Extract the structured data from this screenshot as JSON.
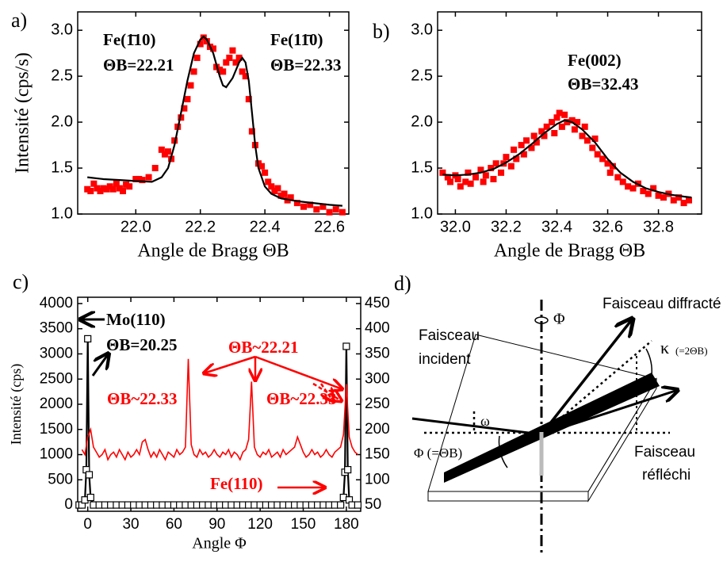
{
  "chart_data": [
    {
      "type": "scatter",
      "panel_label": "a)",
      "xlabel": "Angle de Bragg ΘB",
      "ylabel": "Intensité (cps/s)",
      "xlim": [
        21.82,
        22.66
      ],
      "ylim": [
        1.0,
        3.2
      ],
      "xticks": [
        {
          "value": 22,
          "label": "22.0"
        },
        22.2,
        22.4,
        22.6
      ],
      "yticks": [
        {
          "value": 1,
          "label": "1.0"
        },
        1.5,
        {
          "value": 2,
          "label": "2.0"
        },
        2.5,
        {
          "value": 3,
          "label": "3.0"
        }
      ],
      "series": [
        {
          "type": "scatter",
          "marker": "square",
          "color": "#ff0000",
          "x": [
            21.85,
            21.86,
            21.87,
            21.88,
            21.89,
            21.9,
            21.91,
            21.92,
            21.93,
            21.94,
            21.95,
            21.96,
            21.97,
            21.98,
            22.0,
            22.01,
            22.02,
            22.04,
            22.06,
            22.08,
            22.09,
            22.1,
            22.11,
            22.12,
            22.13,
            22.14,
            22.15,
            22.16,
            22.17,
            22.18,
            22.19,
            22.2,
            22.21,
            22.22,
            22.23,
            22.24,
            22.25,
            22.26,
            22.27,
            22.28,
            22.29,
            22.3,
            22.31,
            22.32,
            22.33,
            22.34,
            22.35,
            22.36,
            22.37,
            22.38,
            22.39,
            22.4,
            22.41,
            22.42,
            22.43,
            22.44,
            22.45,
            22.46,
            22.47,
            22.48,
            22.5,
            22.52,
            22.54,
            22.56,
            22.58,
            22.6,
            22.62,
            22.64
          ],
          "values": [
            1.27,
            1.25,
            1.33,
            1.28,
            1.25,
            1.28,
            1.27,
            1.3,
            1.27,
            1.33,
            1.28,
            1.25,
            1.32,
            1.3,
            1.38,
            1.38,
            1.37,
            1.4,
            1.5,
            1.7,
            1.65,
            1.68,
            1.6,
            1.8,
            1.95,
            2.05,
            2.15,
            2.25,
            2.4,
            2.55,
            2.7,
            2.85,
            2.92,
            2.88,
            2.82,
            2.8,
            2.6,
            2.57,
            2.55,
            2.65,
            2.7,
            2.78,
            2.65,
            2.7,
            2.55,
            2.5,
            2.25,
            1.9,
            1.75,
            1.55,
            1.52,
            1.45,
            1.35,
            1.3,
            1.25,
            1.28,
            1.2,
            1.22,
            1.15,
            1.18,
            1.12,
            1.08,
            1.1,
            1.05,
            1.08,
            1.02,
            1.05,
            1.02
          ]
        },
        {
          "type": "line",
          "color": "#000000",
          "x": [
            21.85,
            21.9,
            21.95,
            22.0,
            22.05,
            22.08,
            22.1,
            22.12,
            22.14,
            22.16,
            22.18,
            22.2,
            22.21,
            22.22,
            22.24,
            22.26,
            22.27,
            22.28,
            22.3,
            22.32,
            22.33,
            22.34,
            22.35,
            22.36,
            22.37,
            22.38,
            22.4,
            22.42,
            22.45,
            22.5,
            22.55,
            22.6,
            22.64
          ],
          "values": [
            1.4,
            1.38,
            1.37,
            1.36,
            1.35,
            1.4,
            1.5,
            1.75,
            2.1,
            2.45,
            2.75,
            2.9,
            2.93,
            2.9,
            2.75,
            2.5,
            2.4,
            2.38,
            2.48,
            2.65,
            2.7,
            2.65,
            2.45,
            2.1,
            1.75,
            1.5,
            1.3,
            1.22,
            1.17,
            1.14,
            1.12,
            1.1,
            1.09
          ]
        }
      ],
      "annotations": [
        {
          "text": "Fe(1̄10)",
          "color": "#000000"
        },
        {
          "text": "ΘB=22.21",
          "color": "#000000"
        },
        {
          "text": "Fe(11̄0)",
          "color": "#000000"
        },
        {
          "text": "ΘB=22.33",
          "color": "#000000"
        }
      ]
    },
    {
      "type": "scatter",
      "panel_label": "b)",
      "xlabel": "Angle de Bragg ΘB",
      "xlim": [
        31.93,
        32.97
      ],
      "ylim": [
        1.0,
        3.2
      ],
      "xticks": [
        {
          "value": 32,
          "label": "32.0"
        },
        32.2,
        32.4,
        32.6,
        32.8
      ],
      "yticks": [
        {
          "value": 1,
          "label": "1.0"
        },
        1.5,
        {
          "value": 2,
          "label": "2.0"
        },
        2.5,
        {
          "value": 3,
          "label": "3.0"
        }
      ],
      "series": [
        {
          "type": "scatter",
          "marker": "square",
          "color": "#ff0000",
          "x": [
            31.95,
            31.97,
            31.98,
            32.0,
            32.01,
            32.02,
            32.04,
            32.05,
            32.06,
            32.08,
            32.1,
            32.11,
            32.12,
            32.14,
            32.15,
            32.16,
            32.18,
            32.19,
            32.2,
            32.22,
            32.23,
            32.24,
            32.26,
            32.27,
            32.28,
            32.3,
            32.31,
            32.32,
            32.34,
            32.35,
            32.36,
            32.38,
            32.39,
            32.4,
            32.41,
            32.42,
            32.43,
            32.44,
            32.46,
            32.47,
            32.48,
            32.5,
            32.51,
            32.52,
            32.54,
            32.55,
            32.56,
            32.58,
            32.6,
            32.61,
            32.62,
            32.64,
            32.66,
            32.68,
            32.7,
            32.72,
            32.74,
            32.76,
            32.78,
            32.8,
            32.82,
            32.84,
            32.86,
            32.88,
            32.9,
            32.92
          ],
          "values": [
            1.45,
            1.4,
            1.35,
            1.42,
            1.38,
            1.3,
            1.35,
            1.45,
            1.33,
            1.4,
            1.48,
            1.35,
            1.42,
            1.5,
            1.38,
            1.55,
            1.45,
            1.55,
            1.62,
            1.52,
            1.7,
            1.6,
            1.75,
            1.65,
            1.8,
            1.72,
            1.85,
            1.78,
            1.9,
            1.85,
            1.95,
            2.0,
            1.88,
            2.05,
            2.1,
            1.95,
            2.08,
            2.0,
            2.02,
            1.92,
            2.0,
            1.85,
            1.95,
            1.8,
            1.72,
            1.82,
            1.65,
            1.6,
            1.55,
            1.45,
            1.52,
            1.4,
            1.35,
            1.3,
            1.28,
            1.33,
            1.25,
            1.22,
            1.28,
            1.2,
            1.18,
            1.22,
            1.15,
            1.18,
            1.12,
            1.15
          ]
        },
        {
          "type": "line",
          "color": "#000000",
          "x": [
            31.95,
            32.0,
            32.05,
            32.1,
            32.15,
            32.2,
            32.25,
            32.3,
            32.35,
            32.4,
            32.43,
            32.46,
            32.5,
            32.55,
            32.6,
            32.65,
            32.7,
            32.75,
            32.8,
            32.85,
            32.9,
            32.93
          ],
          "values": [
            1.43,
            1.42,
            1.43,
            1.45,
            1.49,
            1.56,
            1.65,
            1.76,
            1.88,
            1.98,
            2.02,
            2.0,
            1.92,
            1.78,
            1.6,
            1.45,
            1.35,
            1.28,
            1.24,
            1.21,
            1.19,
            1.18
          ]
        }
      ],
      "annotations": [
        {
          "text": "Fe(002)",
          "color": "#000000"
        },
        {
          "text": "ΘB=32.43",
          "color": "#000000"
        }
      ]
    },
    {
      "type": "line",
      "panel_label": "c)",
      "xlabel": "Angle  Φ",
      "ylabel": "Intensité (cps)",
      "xlim": [
        -7,
        190
      ],
      "ylim": [
        -125,
        4125
      ],
      "y2lim": [
        37.5,
        462.5
      ],
      "xticks": [
        0,
        30,
        60,
        90,
        120,
        150,
        180
      ],
      "yticks": [
        0,
        500,
        1000,
        1500,
        2000,
        2500,
        3000,
        3500,
        4000
      ],
      "y2ticks": [
        50,
        100,
        150,
        200,
        250,
        300,
        350,
        400,
        450
      ],
      "series": [
        {
          "type": "line",
          "marker": "open-square",
          "color": "#000000",
          "axis": "y",
          "x": [
            -6,
            -4,
            -2,
            -1,
            0,
            1,
            2,
            4,
            8,
            12,
            16,
            20,
            24,
            28,
            32,
            36,
            40,
            44,
            48,
            52,
            56,
            60,
            64,
            68,
            72,
            76,
            80,
            84,
            88,
            92,
            96,
            100,
            104,
            108,
            112,
            116,
            120,
            124,
            128,
            132,
            136,
            140,
            144,
            148,
            152,
            156,
            160,
            164,
            168,
            172,
            176,
            178,
            179,
            180,
            181,
            182,
            184,
            188
          ],
          "values": [
            0,
            0,
            100,
            700,
            3300,
            600,
            150,
            0,
            0,
            0,
            0,
            0,
            0,
            0,
            0,
            0,
            0,
            0,
            0,
            0,
            0,
            0,
            0,
            0,
            0,
            0,
            0,
            0,
            0,
            0,
            0,
            0,
            0,
            0,
            0,
            0,
            0,
            0,
            0,
            0,
            0,
            0,
            0,
            0,
            0,
            0,
            0,
            0,
            0,
            0,
            0,
            150,
            650,
            3150,
            700,
            100,
            0,
            0
          ]
        },
        {
          "type": "line",
          "color": "#ff0000",
          "axis": "y2",
          "x": [
            -4,
            -2,
            0,
            2,
            4,
            6,
            8,
            10,
            12,
            14,
            16,
            18,
            20,
            22,
            24,
            26,
            28,
            30,
            32,
            34,
            36,
            38,
            40,
            42,
            44,
            46,
            48,
            50,
            52,
            54,
            56,
            58,
            60,
            62,
            64,
            66,
            68,
            70,
            72,
            74,
            76,
            78,
            80,
            82,
            84,
            86,
            88,
            90,
            92,
            94,
            96,
            98,
            100,
            102,
            104,
            106,
            108,
            110,
            112,
            114,
            116,
            118,
            120,
            122,
            124,
            126,
            128,
            130,
            132,
            134,
            136,
            138,
            140,
            142,
            144,
            146,
            148,
            150,
            152,
            154,
            156,
            158,
            160,
            162,
            164,
            166,
            168,
            170,
            172,
            174,
            176,
            178,
            180,
            182,
            184,
            186,
            188
          ],
          "values": [
            160,
            150,
            185,
            200,
            165,
            155,
            145,
            150,
            160,
            140,
            150,
            155,
            145,
            160,
            150,
            140,
            155,
            145,
            150,
            160,
            150,
            175,
            180,
            160,
            145,
            155,
            145,
            160,
            150,
            140,
            155,
            150,
            145,
            160,
            150,
            155,
            165,
            340,
            170,
            150,
            145,
            160,
            150,
            155,
            145,
            150,
            160,
            150,
            145,
            155,
            150,
            160,
            145,
            155,
            150,
            140,
            155,
            160,
            180,
            295,
            165,
            150,
            145,
            155,
            150,
            160,
            145,
            150,
            155,
            145,
            160,
            150,
            155,
            160,
            165,
            185,
            170,
            155,
            145,
            150,
            160,
            150,
            155,
            145,
            150,
            160,
            150,
            145,
            155,
            160,
            165,
            190,
            290,
            185,
            165,
            155,
            150
          ]
        }
      ],
      "annotations": [
        {
          "text": "Mo(110)",
          "color": "#000000"
        },
        {
          "text": "ΘB=20.25",
          "color": "#000000"
        },
        {
          "text": "ΘB~22.21",
          "color": "#ff0000"
        },
        {
          "text": "ΘB~22.33",
          "color": "#ff0000"
        },
        {
          "text": "ΘB~22.33",
          "color": "#ff0000"
        },
        {
          "text": "Fe(110)",
          "color": "#ff0000"
        }
      ]
    }
  ],
  "diagram": {
    "panel_label": "d)",
    "rotation_axis": "Φ",
    "diffracted_beam": "Faisceau diffracté",
    "incident_beam": [
      "Faisceau",
      "incident"
    ],
    "kappa": "κ",
    "kappa_note": "(=2ΘB)",
    "omega": "ω",
    "phi_angle": "Φ (=ΘB)",
    "reflected_beam": [
      "Faisceau",
      "réfléchi"
    ]
  }
}
